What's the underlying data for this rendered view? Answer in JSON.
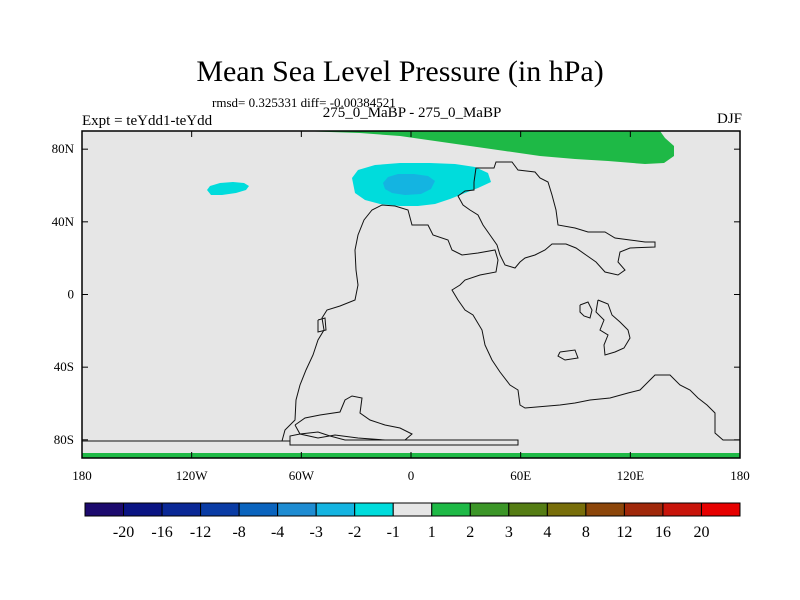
{
  "chart_data": {
    "type": "heatmap",
    "title": "Mean Sea Level Pressure (in hPa)",
    "stats": "rmsd= 0.325331 diff= -0.00384521",
    "subtitle": "275_0_MaBP - 275_0_MaBP",
    "left_label": "Expt = teYdd1-teYdd",
    "right_label": "DJF",
    "x_ticks": [
      {
        "value": -180,
        "label": "180"
      },
      {
        "value": -120,
        "label": "120W"
      },
      {
        "value": -60,
        "label": "60W"
      },
      {
        "value": 0,
        "label": "0"
      },
      {
        "value": 60,
        "label": "60E"
      },
      {
        "value": 120,
        "label": "120E"
      },
      {
        "value": 180,
        "label": "180"
      }
    ],
    "y_ticks": [
      {
        "value": 80,
        "label": "80N"
      },
      {
        "value": 40,
        "label": "40N"
      },
      {
        "value": 0,
        "label": "0"
      },
      {
        "value": -40,
        "label": "40S"
      },
      {
        "value": -80,
        "label": "80S"
      }
    ],
    "xlim": [
      -180,
      180
    ],
    "ylim": [
      -90,
      90
    ],
    "background_color": "#e6e6e6",
    "colorbar": {
      "labels": [
        "-20",
        "-16",
        "-12",
        "-8",
        "-4",
        "-3",
        "-2",
        "-1",
        "1",
        "2",
        "3",
        "4",
        "8",
        "12",
        "16",
        "20"
      ],
      "colors": [
        "#1c0a6e",
        "#0a1483",
        "#0a2896",
        "#0a3ca5",
        "#0a64be",
        "#1e8cd2",
        "#14b4e1",
        "#00dcdc",
        "#e6e6e6",
        "#1eb946",
        "#3c9628",
        "#557d14",
        "#786e0a",
        "#8c460a",
        "#a0280a",
        "#c8140a",
        "#e60000"
      ]
    },
    "features": [
      {
        "name": "arctic-positive-anomaly",
        "level": "2",
        "color": "#1eb946"
      },
      {
        "name": "north-atlantic-negative-anomaly",
        "level": "-2",
        "color": "#00dcdc"
      },
      {
        "name": "north-atlantic-core",
        "level": "-3",
        "color": "#14b4e1"
      },
      {
        "name": "north-pacific-negative-anomaly",
        "level": "-2",
        "color": "#00dcdc"
      },
      {
        "name": "south-pole-positive-anomaly",
        "level": "2",
        "color": "#1eb946"
      }
    ]
  }
}
